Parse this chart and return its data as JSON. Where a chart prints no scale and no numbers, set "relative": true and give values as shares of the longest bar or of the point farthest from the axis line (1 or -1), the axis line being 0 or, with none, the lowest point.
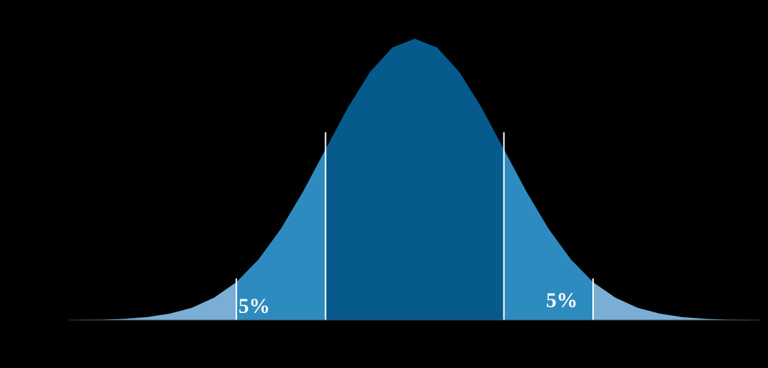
{
  "chart_data": {
    "type": "area",
    "relative": true,
    "legend": false,
    "grid": false,
    "categories": [
      null,
      null,
      null,
      null,
      null,
      null,
      null,
      null,
      null,
      null,
      null,
      null,
      null,
      null,
      null,
      null,
      null,
      null,
      null,
      null,
      null,
      null,
      null,
      null,
      null,
      null,
      null,
      null,
      null,
      null,
      null
    ],
    "series": [
      {
        "color": "#7aaed4",
        "values": [
          0.001,
          0.002,
          0.005,
          0.011,
          0.023,
          0.044,
          0.08,
          0.135,
          null,
          null,
          null,
          null,
          null,
          null,
          null,
          null,
          null,
          null,
          null,
          null,
          null,
          null,
          null,
          null,
          null,
          null,
          null,
          null,
          null,
          null,
          null
        ]
      },
      {
        "color": "#2e8bbf",
        "values": [
          null,
          null,
          null,
          null,
          null,
          null,
          null,
          0.135,
          0.216,
          0.325,
          0.458,
          0.607,
          null,
          null,
          null,
          null,
          null,
          null,
          null,
          null,
          null,
          null,
          null,
          null,
          null,
          null,
          null,
          null,
          null,
          null,
          null
        ]
      },
      {
        "color": "#065a8c",
        "values": [
          null,
          null,
          null,
          null,
          null,
          null,
          null,
          null,
          null,
          null,
          null,
          0.607,
          0.755,
          0.882,
          0.969,
          1,
          0.969,
          0.882,
          0.755,
          0.607,
          null,
          null,
          null,
          null,
          null,
          null,
          null,
          null,
          null,
          null,
          null
        ]
      },
      {
        "color": "#2e8bbf",
        "values": [
          null,
          null,
          null,
          null,
          null,
          null,
          null,
          null,
          null,
          null,
          null,
          null,
          null,
          null,
          null,
          null,
          null,
          null,
          null,
          0.607,
          0.458,
          0.325,
          0.216,
          0.135,
          null,
          null,
          null,
          null,
          null,
          null,
          null
        ]
      },
      {
        "color": "#7aaed4",
        "values": [
          null,
          null,
          null,
          null,
          null,
          null,
          null,
          null,
          null,
          null,
          null,
          null,
          null,
          null,
          null,
          null,
          null,
          null,
          null,
          null,
          null,
          null,
          null,
          0.135,
          0.08,
          0.044,
          0.023,
          0.011,
          0.005,
          0.002,
          0.001
        ]
      }
    ],
    "annotations": [
      "5%",
      "5%"
    ]
  }
}
